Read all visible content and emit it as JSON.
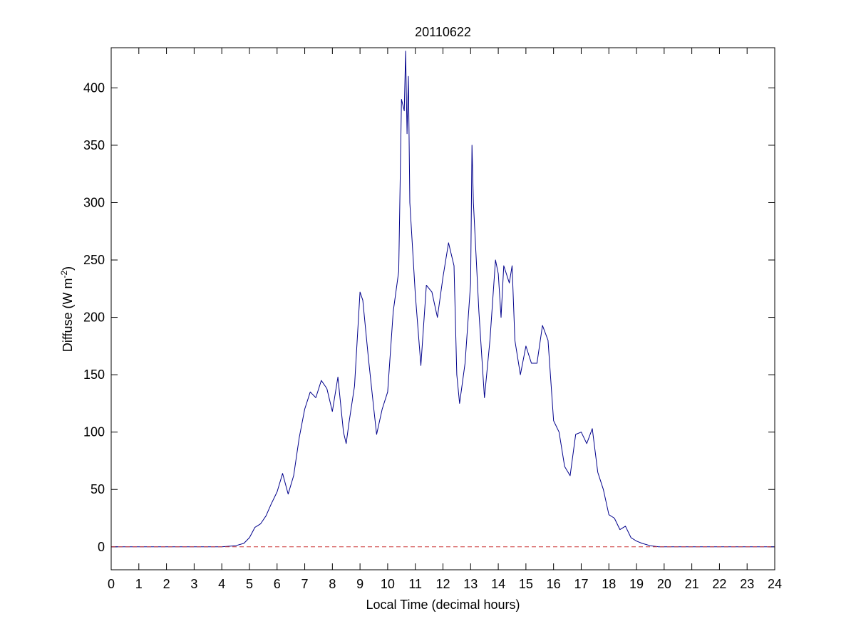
{
  "chart_data": {
    "type": "line",
    "title": "20110622",
    "xlabel": "Local Time (decimal hours)",
    "ylabel_main": "Diffuse (W m",
    "ylabel_sup": "-2",
    "ylabel_close": ")",
    "xlim": [
      0,
      24
    ],
    "ylim": [
      -20,
      435
    ],
    "xticks": [
      "0",
      "1",
      "2",
      "3",
      "4",
      "5",
      "6",
      "7",
      "8",
      "9",
      "10",
      "11",
      "12",
      "13",
      "14",
      "15",
      "16",
      "17",
      "18",
      "19",
      "20",
      "21",
      "22",
      "23",
      "24"
    ],
    "yticks": [
      "0",
      "50",
      "100",
      "150",
      "200",
      "250",
      "300",
      "350",
      "400"
    ],
    "grid": false,
    "series": [
      {
        "color": "#00008b",
        "x": [
          0,
          1,
          2,
          3,
          4,
          4.5,
          4.8,
          5.0,
          5.2,
          5.4,
          5.6,
          5.8,
          6.0,
          6.2,
          6.4,
          6.6,
          6.8,
          7.0,
          7.2,
          7.4,
          7.6,
          7.8,
          8.0,
          8.2,
          8.4,
          8.5,
          8.6,
          8.8,
          9.0,
          9.1,
          9.3,
          9.5,
          9.6,
          9.8,
          10.0,
          10.2,
          10.4,
          10.5,
          10.6,
          10.65,
          10.7,
          10.75,
          10.8,
          11.0,
          11.2,
          11.4,
          11.6,
          11.8,
          12.0,
          12.2,
          12.4,
          12.5,
          12.6,
          12.8,
          13.0,
          13.05,
          13.1,
          13.3,
          13.5,
          13.7,
          13.9,
          14.0,
          14.1,
          14.2,
          14.4,
          14.5,
          14.6,
          14.8,
          15.0,
          15.2,
          15.4,
          15.6,
          15.8,
          16.0,
          16.2,
          16.4,
          16.6,
          16.8,
          17.0,
          17.2,
          17.4,
          17.6,
          17.8,
          18.0,
          18.2,
          18.4,
          18.6,
          18.8,
          19.0,
          19.2,
          19.5,
          19.8,
          20.0,
          21,
          22,
          23,
          24
        ],
        "y": [
          0,
          0,
          0,
          0,
          0,
          1,
          3,
          8,
          17,
          20,
          27,
          38,
          48,
          64,
          46,
          62,
          95,
          120,
          135,
          130,
          145,
          138,
          118,
          148,
          100,
          90,
          108,
          140,
          222,
          215,
          165,
          120,
          98,
          120,
          135,
          205,
          240,
          390,
          380,
          432,
          360,
          410,
          300,
          220,
          158,
          228,
          222,
          200,
          235,
          265,
          245,
          150,
          125,
          160,
          230,
          350,
          300,
          205,
          130,
          180,
          250,
          238,
          200,
          245,
          230,
          245,
          180,
          150,
          175,
          160,
          160,
          193,
          180,
          110,
          100,
          70,
          62,
          98,
          100,
          90,
          103,
          65,
          50,
          28,
          25,
          15,
          18,
          8,
          5,
          3,
          1,
          0,
          0,
          0,
          0,
          0,
          0
        ]
      },
      {
        "color": "#cc3333",
        "dashed": true,
        "x": [
          0,
          24
        ],
        "y": [
          0,
          0
        ]
      }
    ]
  }
}
